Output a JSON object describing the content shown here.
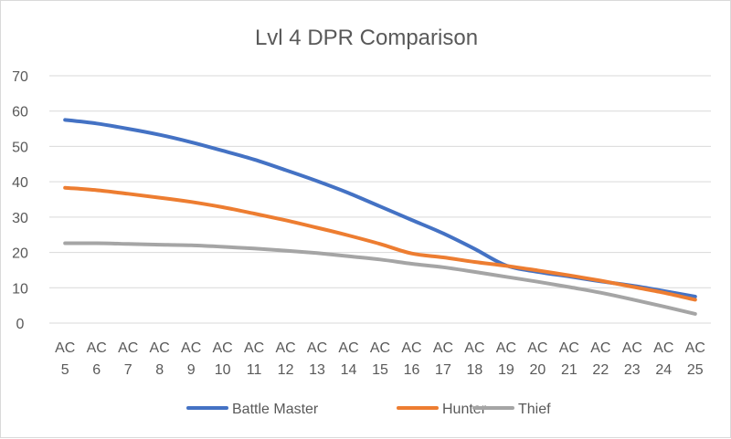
{
  "chart_data": {
    "type": "line",
    "title": "Lvl 4 DPR Comparison",
    "xlabel": "",
    "ylabel": "",
    "categories": [
      [
        "AC",
        "5"
      ],
      [
        "AC",
        "6"
      ],
      [
        "AC",
        "7"
      ],
      [
        "AC",
        "8"
      ],
      [
        "AC",
        "9"
      ],
      [
        "AC",
        "10"
      ],
      [
        "AC",
        "11"
      ],
      [
        "AC",
        "12"
      ],
      [
        "AC",
        "13"
      ],
      [
        "AC",
        "14"
      ],
      [
        "AC",
        "15"
      ],
      [
        "AC",
        "16"
      ],
      [
        "AC",
        "17"
      ],
      [
        "AC",
        "18"
      ],
      [
        "AC",
        "19"
      ],
      [
        "AC",
        "20"
      ],
      [
        "AC",
        "21"
      ],
      [
        "AC",
        "22"
      ],
      [
        "AC",
        "23"
      ],
      [
        "AC",
        "24"
      ],
      [
        "AC",
        "25"
      ]
    ],
    "ylim": [
      0,
      70
    ],
    "yticks": [
      0,
      10,
      20,
      30,
      40,
      50,
      60,
      70
    ],
    "grid": true,
    "legend_position": "bottom",
    "series": [
      {
        "name": "Battle Master",
        "color": "#4472c4",
        "values": [
          57.5,
          56.5,
          55.0,
          53.3,
          51.2,
          48.8,
          46.3,
          43.3,
          40.2,
          36.8,
          33.0,
          29.2,
          25.4,
          21.0,
          16.3,
          14.5,
          13.2,
          11.8,
          10.6,
          9.1,
          7.5
        ]
      },
      {
        "name": "Hunter",
        "color": "#ed7d31",
        "values": [
          38.3,
          37.6,
          36.6,
          35.5,
          34.3,
          32.8,
          31.0,
          29.1,
          27.0,
          24.8,
          22.4,
          19.7,
          18.6,
          17.3,
          16.2,
          14.9,
          13.5,
          12.0,
          10.3,
          8.6,
          6.6
        ]
      },
      {
        "name": "Thief",
        "color": "#a5a5a5",
        "values": [
          22.6,
          22.6,
          22.4,
          22.2,
          22.0,
          21.6,
          21.1,
          20.5,
          19.8,
          18.9,
          18.0,
          16.8,
          15.8,
          14.5,
          13.1,
          11.7,
          10.2,
          8.6,
          6.7,
          4.7,
          2.6
        ]
      }
    ]
  }
}
